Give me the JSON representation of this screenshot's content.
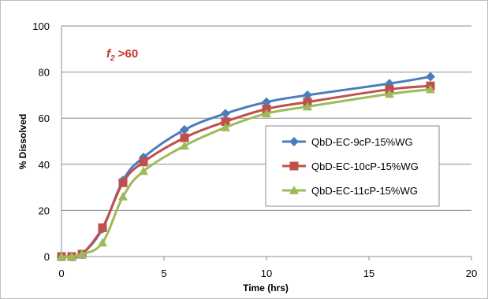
{
  "chart_data": {
    "type": "line",
    "title": "",
    "xlabel": "Time (hrs)",
    "ylabel": "% Dissolved",
    "xlim": [
      0,
      20
    ],
    "ylim": [
      0,
      100
    ],
    "x_ticks": [
      "0",
      "5",
      "10",
      "15",
      "20"
    ],
    "y_ticks": [
      "0",
      "20",
      "40",
      "60",
      "80",
      "100"
    ],
    "grid": "horizontal",
    "legend_position": "right",
    "annotation": {
      "symbol": "f",
      "subscript": "2",
      "text": " >60"
    },
    "series": [
      {
        "name": "QbD-EC-9cP-15%WG",
        "color": "#4a7ebb",
        "marker": "diamond",
        "x": [
          0,
          0.5,
          1,
          2,
          3,
          4,
          6,
          8,
          10,
          12,
          16,
          18
        ],
        "y": [
          0,
          0,
          1,
          12,
          33,
          43,
          55,
          62,
          67,
          70,
          75,
          78
        ]
      },
      {
        "name": "QbD-EC-10cP-15%WG",
        "color": "#c0504d",
        "marker": "square",
        "x": [
          0,
          0.5,
          1,
          2,
          3,
          4,
          6,
          8,
          10,
          12,
          16,
          18
        ],
        "y": [
          0,
          0,
          1,
          12.5,
          32,
          41,
          51.5,
          58.5,
          64,
          67,
          72.5,
          74
        ]
      },
      {
        "name": "QbD-EC-11cP-15%WG",
        "color": "#9bbb59",
        "marker": "triangle",
        "x": [
          0,
          0.5,
          1,
          2,
          3,
          4,
          6,
          8,
          10,
          12,
          16,
          18
        ],
        "y": [
          0,
          0,
          1,
          6,
          26,
          37,
          48,
          56,
          62,
          65,
          70.5,
          72.5
        ]
      }
    ]
  }
}
